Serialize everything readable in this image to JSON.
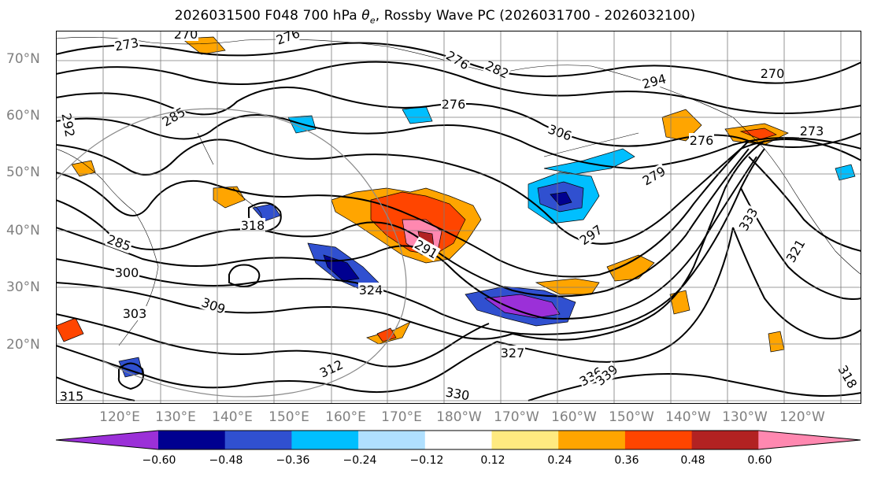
{
  "title": {
    "prefix": "2026031500 F048 700 hPa ",
    "symbol": "θ",
    "subscript": "e",
    "suffix": ", Rossby Wave PC (2026031700 - 2026032100)"
  },
  "map": {
    "latitude_labels": [
      "70°N",
      "60°N",
      "50°N",
      "40°N",
      "30°N",
      "20°N"
    ],
    "longitude_labels": [
      "120°E",
      "130°E",
      "140°E",
      "150°E",
      "160°E",
      "170°E",
      "180°W",
      "170°W",
      "160°W",
      "150°W",
      "140°W",
      "130°W",
      "120°W"
    ],
    "contour_labels": [
      "273",
      "270",
      "276",
      "285",
      "292",
      "276",
      "282",
      "276",
      "294",
      "270",
      "273",
      "306",
      "276",
      "279",
      "285",
      "291",
      "297",
      "300",
      "303",
      "309",
      "312",
      "318",
      "315",
      "324",
      "327",
      "330",
      "336",
      "339",
      "333",
      "321",
      "318"
    ],
    "grid": true
  },
  "colorbar": {
    "tick_labels": [
      "−0.60",
      "−0.48",
      "−0.36",
      "−0.24",
      "−0.12",
      "0.12",
      "0.24",
      "0.36",
      "0.48",
      "0.60"
    ],
    "colors": [
      "#9b30d8",
      "#000090",
      "#3050d0",
      "#00bfff",
      "#b0e0ff",
      "#ffffff",
      "#ffea80",
      "#ffa500",
      "#ff4500",
      "#b22222",
      "#ff88b0"
    ]
  }
}
